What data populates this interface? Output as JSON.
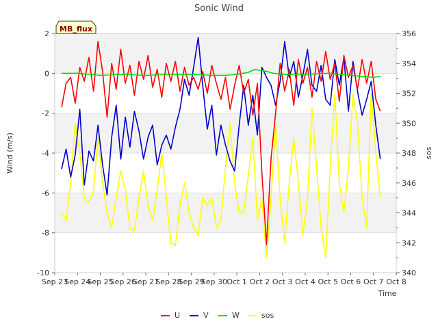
{
  "chart_data": {
    "type": "line",
    "title": "Sonic Wind",
    "badge": "MB_flux",
    "xlabel": "Time",
    "ylabel": "Wind (m/s)",
    "y2label": "sos",
    "ylim": [
      -10,
      2
    ],
    "y2lim": [
      340,
      356
    ],
    "xlim": [
      0,
      15
    ],
    "categories": [
      "Sep 23",
      "Sep 24",
      "Sep 25",
      "Sep 26",
      "Sep 27",
      "Sep 28",
      "Sep 29",
      "Sep 30",
      "Oct 1",
      "Oct 2",
      "Oct 3",
      "Oct 4",
      "Oct 5",
      "Oct 6",
      "Oct 7",
      "Oct 8"
    ],
    "yticks": [
      2,
      0,
      -2,
      -4,
      -6,
      -8,
      -10
    ],
    "y2ticks": [
      356,
      354,
      352,
      350,
      348,
      346,
      344,
      342,
      340
    ],
    "grid": true,
    "legend_position": "bottom",
    "series": [
      {
        "name": "U",
        "color": "#ff0000",
        "axis": "left",
        "x": [
          0.3,
          0.5,
          0.7,
          0.9,
          1.1,
          1.3,
          1.5,
          1.7,
          1.9,
          2.1,
          2.3,
          2.5,
          2.7,
          2.9,
          3.1,
          3.3,
          3.5,
          3.7,
          3.9,
          4.1,
          4.3,
          4.5,
          4.7,
          4.9,
          5.1,
          5.3,
          5.5,
          5.7,
          5.9,
          6.1,
          6.3,
          6.5,
          6.7,
          6.9,
          7.1,
          7.3,
          7.5,
          7.7,
          7.9,
          8.1,
          8.3,
          8.5,
          8.7,
          8.9,
          9.1,
          9.3,
          9.5,
          9.7,
          9.9,
          10.1,
          10.3,
          10.5,
          10.7,
          10.9,
          11.1,
          11.3,
          11.5,
          11.7,
          11.9,
          12.1,
          12.3,
          12.5,
          12.7,
          12.9,
          13.1,
          13.3,
          13.5,
          13.7,
          13.9,
          14.1,
          14.3
        ],
        "values": [
          -1.7,
          -0.5,
          -0.2,
          -1.5,
          0.3,
          -0.4,
          0.8,
          -0.9,
          1.6,
          0.1,
          -2.2,
          0.5,
          -0.8,
          1.2,
          -0.5,
          0.4,
          -1.1,
          0.6,
          -0.3,
          0.9,
          -0.7,
          0.2,
          -1.2,
          0.5,
          -0.4,
          0.6,
          -0.9,
          0.3,
          -0.6,
          -0.2,
          -0.8,
          0.1,
          -1.0,
          0.4,
          -0.5,
          -1.3,
          -0.2,
          -1.8,
          -0.6,
          0.4,
          -1.0,
          -0.3,
          -2.1,
          -0.5,
          -5.0,
          -8.6,
          -4.3,
          -2.0,
          0.5,
          -0.9,
          0.2,
          -1.6,
          0.7,
          -0.5,
          0.3,
          -1.2,
          0.6,
          -0.4,
          1.1,
          -0.3,
          0.5,
          -1.4,
          0.9,
          -0.2,
          0.4,
          -0.8,
          0.7,
          -0.5,
          0.6,
          -1.3,
          -1.9
        ]
      },
      {
        "name": "V",
        "color": "#0000cc",
        "axis": "left",
        "x": [
          0.3,
          0.5,
          0.7,
          0.9,
          1.1,
          1.3,
          1.5,
          1.7,
          1.9,
          2.1,
          2.3,
          2.5,
          2.7,
          2.9,
          3.1,
          3.3,
          3.5,
          3.7,
          3.9,
          4.1,
          4.3,
          4.5,
          4.7,
          4.9,
          5.1,
          5.3,
          5.5,
          5.7,
          5.9,
          6.1,
          6.3,
          6.5,
          6.7,
          6.9,
          7.1,
          7.3,
          7.5,
          7.7,
          7.9,
          8.1,
          8.3,
          8.5,
          8.7,
          8.9,
          9.1,
          9.3,
          9.5,
          9.7,
          9.9,
          10.1,
          10.3,
          10.5,
          10.7,
          10.9,
          11.1,
          11.3,
          11.5,
          11.7,
          11.9,
          12.1,
          12.3,
          12.5,
          12.7,
          12.9,
          13.1,
          13.3,
          13.5,
          13.7,
          13.9,
          14.1,
          14.3
        ],
        "values": [
          -4.8,
          -3.8,
          -5.2,
          -4.1,
          -1.8,
          -5.6,
          -3.9,
          -4.4,
          -2.6,
          -4.6,
          -6.1,
          -3.2,
          -1.6,
          -4.3,
          -2.2,
          -3.7,
          -1.9,
          -2.9,
          -4.3,
          -3.2,
          -2.6,
          -4.6,
          -3.6,
          -3.1,
          -3.8,
          -2.7,
          -1.8,
          -0.3,
          -1.1,
          0.3,
          1.8,
          -0.6,
          -2.8,
          -1.6,
          -4.1,
          -2.6,
          -3.6,
          -4.4,
          -4.9,
          -2.6,
          -0.6,
          -2.6,
          -1.1,
          -3.1,
          0.3,
          -0.2,
          -0.6,
          -1.6,
          -0.4,
          1.6,
          -0.2,
          0.6,
          -1.2,
          -0.1,
          1.2,
          -0.6,
          -0.9,
          0.4,
          -1.3,
          -1.6,
          0.7,
          -0.6,
          0.8,
          -1.9,
          0.6,
          -0.9,
          -2.1,
          -1.3,
          -0.4,
          -2.6,
          -4.3
        ]
      },
      {
        "name": "W",
        "color": "#00dd00",
        "axis": "left",
        "x": [
          0.3,
          1.0,
          2.0,
          3.0,
          4.0,
          5.0,
          6.0,
          7.0,
          7.5,
          8.0,
          8.5,
          8.8,
          9.0,
          9.3,
          9.6,
          10.0,
          11.0,
          12.0,
          13.0,
          14.0,
          14.3
        ],
        "values": [
          0.0,
          0.0,
          -0.1,
          -0.05,
          -0.1,
          -0.05,
          -0.05,
          -0.1,
          -0.1,
          -0.05,
          0.05,
          0.2,
          0.15,
          0.1,
          0.0,
          -0.05,
          -0.05,
          0.0,
          -0.1,
          -0.2,
          -0.15
        ]
      },
      {
        "name": "sos",
        "color": "#ffff00",
        "axis": "right",
        "x": [
          0.3,
          0.5,
          0.7,
          0.9,
          1.1,
          1.3,
          1.5,
          1.7,
          1.9,
          2.1,
          2.3,
          2.5,
          2.7,
          2.9,
          3.1,
          3.3,
          3.5,
          3.7,
          3.9,
          4.1,
          4.3,
          4.5,
          4.7,
          4.9,
          5.1,
          5.3,
          5.5,
          5.7,
          5.9,
          6.1,
          6.3,
          6.5,
          6.7,
          6.9,
          7.1,
          7.3,
          7.5,
          7.7,
          7.9,
          8.1,
          8.3,
          8.5,
          8.7,
          8.9,
          9.1,
          9.3,
          9.5,
          9.7,
          9.9,
          10.1,
          10.3,
          10.5,
          10.7,
          10.9,
          11.1,
          11.3,
          11.5,
          11.7,
          11.9,
          12.1,
          12.3,
          12.5,
          12.7,
          12.9,
          13.1,
          13.3,
          13.5,
          13.7,
          13.9,
          14.1,
          14.3
        ],
        "values": [
          344,
          343.5,
          346,
          350,
          348,
          345,
          344.7,
          345.5,
          349,
          346,
          344,
          343,
          345,
          346.8,
          345.5,
          343,
          342.8,
          345,
          346.8,
          344.5,
          343.5,
          345.5,
          348,
          345,
          342,
          341.8,
          344.5,
          346,
          344,
          343,
          342.5,
          345,
          344.5,
          345,
          343,
          343.5,
          347,
          350,
          346,
          344,
          344,
          346.5,
          349,
          343.5,
          345,
          341,
          345,
          350,
          345,
          342,
          346,
          349,
          346,
          342.5,
          345,
          351,
          347,
          343,
          341,
          347,
          352,
          346,
          344,
          347,
          352,
          350,
          345,
          343,
          352,
          348,
          345
        ]
      }
    ]
  }
}
